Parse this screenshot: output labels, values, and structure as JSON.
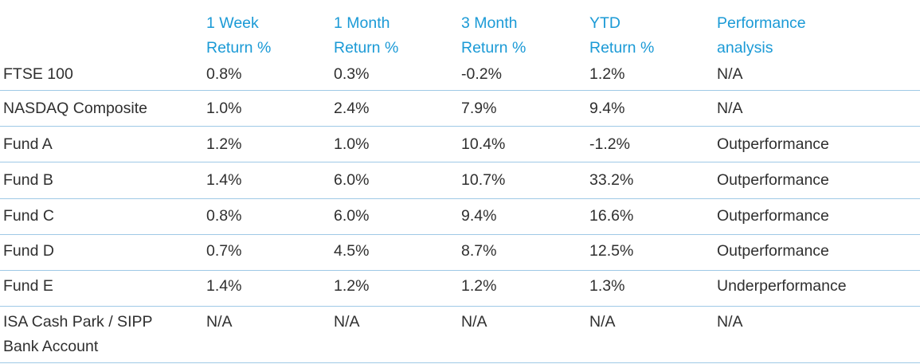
{
  "table": {
    "headers": [
      [
        "1 Week",
        "Return %"
      ],
      [
        "1 Month",
        "Return %"
      ],
      [
        "3 Month",
        "Return %"
      ],
      [
        "YTD",
        "Return %"
      ],
      [
        "Performance",
        "analysis"
      ]
    ],
    "rows": [
      {
        "name": [
          "FTSE 100"
        ],
        "w1": "0.8%",
        "m1": "0.3%",
        "m3": "-0.2%",
        "ytd": "1.2%",
        "analysis": "N/A"
      },
      {
        "name": [
          "NASDAQ Composite"
        ],
        "w1": "1.0%",
        "m1": "2.4%",
        "m3": "7.9%",
        "ytd": "9.4%",
        "analysis": "N/A"
      },
      {
        "name": [
          "Fund A"
        ],
        "w1": "1.2%",
        "m1": "1.0%",
        "m3": "10.4%",
        "ytd": "-1.2%",
        "analysis": "Outperformance"
      },
      {
        "name": [
          "Fund B"
        ],
        "w1": "1.4%",
        "m1": "6.0%",
        "m3": "10.7%",
        "ytd": "33.2%",
        "analysis": "Outperformance"
      },
      {
        "name": [
          "Fund C"
        ],
        "w1": "0.8%",
        "m1": "6.0%",
        "m3": "9.4%",
        "ytd": "16.6%",
        "analysis": "Outperformance"
      },
      {
        "name": [
          "Fund D"
        ],
        "w1": "0.7%",
        "m1": "4.5%",
        "m3": "8.7%",
        "ytd": "12.5%",
        "analysis": "Outperformance"
      },
      {
        "name": [
          "Fund E"
        ],
        "w1": "1.4%",
        "m1": "1.2%",
        "m3": "1.2%",
        "ytd": "1.3%",
        "analysis": "Underperformance"
      },
      {
        "name": [
          "ISA Cash Park / SIPP",
          "Bank Account"
        ],
        "w1": "N/A",
        "m1": "N/A",
        "m3": "N/A",
        "ytd": "N/A",
        "analysis": "N/A"
      }
    ]
  },
  "colors": {
    "header_text": "#1b9ad6",
    "body_text": "#2f2f2f",
    "rule": "#9fc9e6"
  }
}
